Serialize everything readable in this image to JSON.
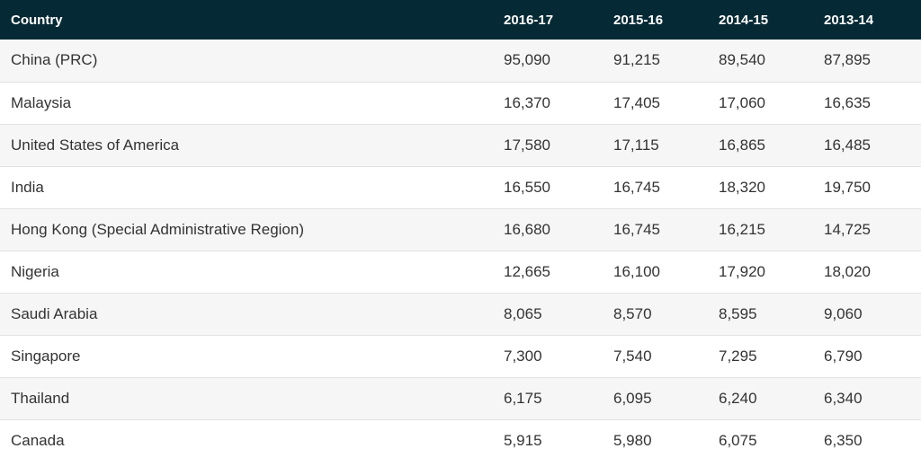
{
  "table": {
    "headers": [
      "Country",
      "2016-17",
      "2015-16",
      "2014-15",
      "2013-14"
    ],
    "rows": [
      {
        "country": "China (PRC)",
        "values": [
          "95,090",
          "91,215",
          "89,540",
          "87,895"
        ]
      },
      {
        "country": "Malaysia",
        "values": [
          "16,370",
          "17,405",
          "17,060",
          "16,635"
        ]
      },
      {
        "country": "United States of America",
        "values": [
          "17,580",
          "17,115",
          "16,865",
          "16,485"
        ]
      },
      {
        "country": "India",
        "values": [
          "16,550",
          "16,745",
          "18,320",
          "19,750"
        ]
      },
      {
        "country": "Hong Kong (Special Administrative Region)",
        "values": [
          "16,680",
          "16,745",
          "16,215",
          "14,725"
        ]
      },
      {
        "country": "Nigeria",
        "values": [
          "12,665",
          "16,100",
          "17,920",
          "18,020"
        ]
      },
      {
        "country": "Saudi Arabia",
        "values": [
          "8,065",
          "8,570",
          "8,595",
          "9,060"
        ]
      },
      {
        "country": "Singapore",
        "values": [
          "7,300",
          "7,540",
          "7,295",
          "6,790"
        ]
      },
      {
        "country": "Thailand",
        "values": [
          "6,175",
          "6,095",
          "6,240",
          "6,340"
        ]
      },
      {
        "country": "Canada",
        "values": [
          "5,915",
          "5,980",
          "6,075",
          "6,350"
        ]
      }
    ]
  },
  "colors": {
    "header_background": "#052a35",
    "header_text": "#ffffff",
    "row_alt_background": "#f6f6f6",
    "body_text": "#333333"
  }
}
